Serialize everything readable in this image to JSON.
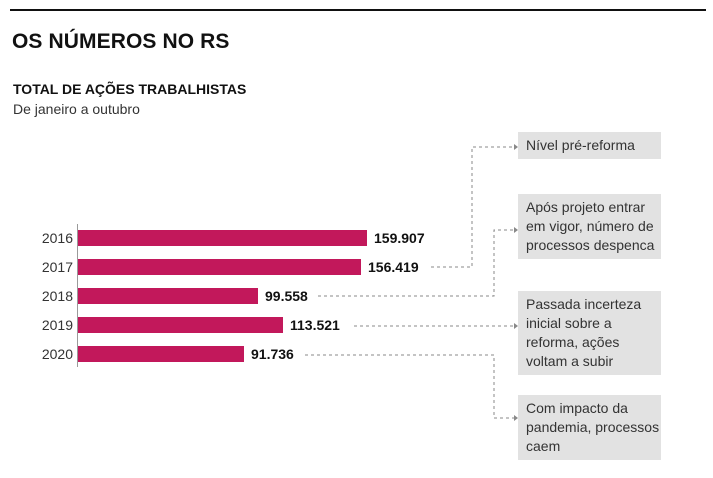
{
  "header": {
    "title": "OS NÚMEROS NO RS"
  },
  "chart_data": {
    "type": "bar",
    "orientation": "horizontal",
    "title": "TOTAL DE AÇÕES TRABALHISTAS",
    "subtitle": "De janeiro a outubro",
    "categories": [
      "2016",
      "2017",
      "2018",
      "2019",
      "2020"
    ],
    "values": [
      159907,
      156419,
      99558,
      113521,
      91736
    ],
    "value_labels": [
      "159.907",
      "156.419",
      "99.558",
      "113.521",
      "91.736"
    ],
    "xlim": [
      0,
      159907
    ],
    "bar_color": "#c2185b",
    "annotations": [
      {
        "text": "Nível pré-reforma",
        "refers_to": [
          "2016",
          "2017"
        ]
      },
      {
        "text": "Após projeto entrar em vigor, número de processos despenca",
        "refers_to": [
          "2018"
        ]
      },
      {
        "text": "Passada incerteza inicial sobre a reforma, ações voltam a subir",
        "refers_to": [
          "2019"
        ]
      },
      {
        "text": "Com impacto da pandemia, processos caem",
        "refers_to": [
          "2020"
        ]
      }
    ]
  }
}
